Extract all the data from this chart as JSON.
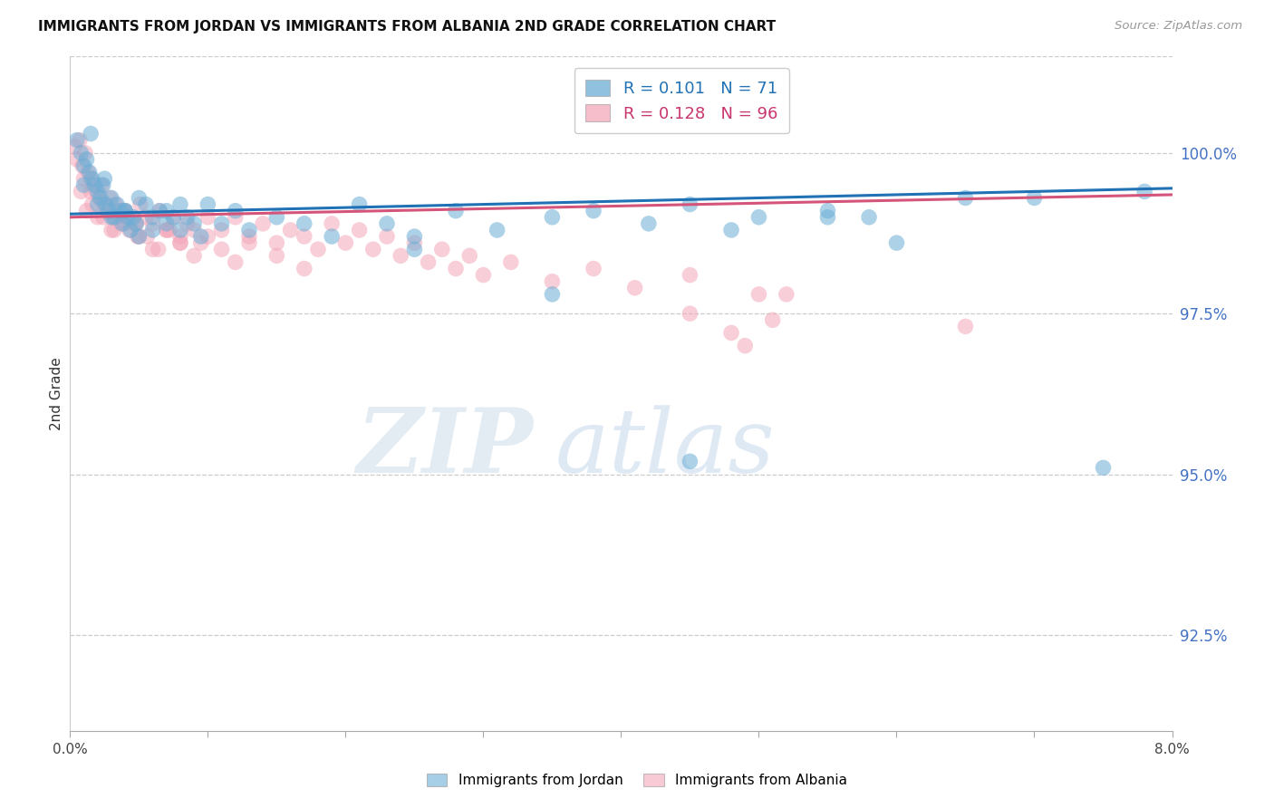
{
  "title": "IMMIGRANTS FROM JORDAN VS IMMIGRANTS FROM ALBANIA 2ND GRADE CORRELATION CHART",
  "source": "Source: ZipAtlas.com",
  "ylabel": "2nd Grade",
  "xlim": [
    0.0,
    8.0
  ],
  "ylim": [
    91.0,
    101.5
  ],
  "yticks": [
    92.5,
    95.0,
    97.5,
    100.0
  ],
  "ytick_labels": [
    "92.5%",
    "95.0%",
    "97.5%",
    "100.0%"
  ],
  "xtick_vals": [
    0.0,
    1.0,
    2.0,
    3.0,
    4.0,
    5.0,
    6.0,
    7.0,
    8.0
  ],
  "xtick_labels": [
    "0.0%",
    "",
    "",
    "",
    "",
    "",
    "",
    "",
    "8.0%"
  ],
  "jordan_color": "#6baed6",
  "albania_color": "#f4a7b9",
  "jordan_line_color": "#2171b5",
  "albania_line_color": "#d4547a",
  "jordan_R": 0.101,
  "jordan_N": 71,
  "albania_R": 0.128,
  "albania_N": 96,
  "jordan_line_y0": 99.05,
  "jordan_line_y1": 99.45,
  "albania_line_y0": 99.0,
  "albania_line_y1": 99.35,
  "legend_jordan_label": "Immigrants from Jordan",
  "legend_albania_label": "Immigrants from Albania",
  "watermark_zip": "ZIP",
  "watermark_atlas": "atlas",
  "jordan_scatter_x": [
    0.05,
    0.08,
    0.1,
    0.12,
    0.14,
    0.16,
    0.18,
    0.2,
    0.22,
    0.24,
    0.26,
    0.28,
    0.3,
    0.32,
    0.34,
    0.36,
    0.38,
    0.4,
    0.42,
    0.44,
    0.46,
    0.48,
    0.5,
    0.55,
    0.6,
    0.65,
    0.7,
    0.75,
    0.8,
    0.85,
    0.9,
    0.95,
    1.0,
    1.1,
    1.2,
    1.3,
    1.5,
    1.7,
    1.9,
    2.1,
    2.3,
    2.5,
    2.8,
    3.1,
    3.5,
    3.8,
    4.2,
    4.5,
    4.8,
    5.0,
    5.5,
    5.8,
    6.0,
    7.0,
    7.5,
    0.1,
    0.2,
    0.3,
    0.4,
    0.5,
    0.6,
    0.7,
    0.8,
    2.5,
    3.5,
    4.5,
    5.5,
    6.5,
    7.8,
    0.15,
    0.25
  ],
  "jordan_scatter_y": [
    100.2,
    100.0,
    99.8,
    99.9,
    99.7,
    99.6,
    99.5,
    99.4,
    99.3,
    99.5,
    99.2,
    99.1,
    99.3,
    99.0,
    99.2,
    99.1,
    98.9,
    99.1,
    99.0,
    98.8,
    99.0,
    98.9,
    98.7,
    99.2,
    99.0,
    99.1,
    98.9,
    99.0,
    98.8,
    99.0,
    98.9,
    98.7,
    99.2,
    98.9,
    99.1,
    98.8,
    99.0,
    98.9,
    98.7,
    99.2,
    98.9,
    98.7,
    99.1,
    98.8,
    99.0,
    99.1,
    98.9,
    99.2,
    98.8,
    99.0,
    99.1,
    99.0,
    98.6,
    99.3,
    95.1,
    99.5,
    99.2,
    99.0,
    99.1,
    99.3,
    98.8,
    99.1,
    99.2,
    98.5,
    97.8,
    95.2,
    99.0,
    99.3,
    99.4,
    100.3,
    99.6
  ],
  "albania_scatter_x": [
    0.03,
    0.05,
    0.07,
    0.09,
    0.11,
    0.13,
    0.15,
    0.17,
    0.19,
    0.21,
    0.23,
    0.25,
    0.27,
    0.29,
    0.31,
    0.33,
    0.35,
    0.37,
    0.39,
    0.41,
    0.43,
    0.45,
    0.47,
    0.49,
    0.51,
    0.55,
    0.6,
    0.65,
    0.7,
    0.75,
    0.8,
    0.85,
    0.9,
    0.95,
    1.0,
    1.1,
    1.2,
    1.3,
    1.4,
    1.5,
    1.6,
    1.7,
    1.8,
    1.9,
    2.0,
    2.1,
    2.2,
    2.3,
    2.4,
    2.5,
    2.6,
    2.7,
    2.8,
    2.9,
    3.0,
    3.2,
    3.5,
    3.8,
    4.1,
    4.5,
    5.0,
    0.08,
    0.16,
    0.24,
    0.32,
    0.4,
    0.48,
    0.56,
    0.64,
    0.72,
    0.8,
    0.9,
    1.0,
    1.1,
    1.2,
    1.3,
    1.5,
    1.7,
    0.2,
    0.3,
    0.4,
    0.5,
    0.6,
    0.7,
    0.8,
    4.5,
    5.2,
    0.1,
    0.15,
    0.25,
    0.35,
    4.8,
    4.9,
    5.1,
    6.5,
    0.12
  ],
  "albania_scatter_y": [
    100.1,
    99.9,
    100.2,
    99.8,
    100.0,
    99.7,
    99.6,
    99.5,
    99.4,
    99.3,
    99.5,
    99.2,
    99.1,
    99.3,
    99.0,
    99.2,
    99.1,
    98.9,
    99.1,
    99.0,
    98.8,
    99.0,
    98.9,
    98.7,
    99.2,
    99.0,
    98.9,
    99.1,
    98.8,
    99.0,
    98.7,
    98.9,
    98.8,
    98.6,
    99.0,
    98.8,
    99.0,
    98.7,
    98.9,
    98.6,
    98.8,
    98.7,
    98.5,
    98.9,
    98.6,
    98.8,
    98.5,
    98.7,
    98.4,
    98.6,
    98.3,
    98.5,
    98.2,
    98.4,
    98.1,
    98.3,
    98.0,
    98.2,
    97.9,
    98.1,
    97.8,
    99.4,
    99.2,
    99.0,
    98.8,
    99.1,
    98.9,
    98.7,
    98.5,
    98.8,
    98.6,
    98.4,
    98.7,
    98.5,
    98.3,
    98.6,
    98.4,
    98.2,
    99.0,
    98.8,
    98.9,
    98.7,
    98.5,
    98.8,
    98.6,
    97.5,
    97.8,
    99.6,
    99.4,
    99.2,
    99.0,
    97.2,
    97.0,
    97.4,
    97.3,
    99.1
  ]
}
